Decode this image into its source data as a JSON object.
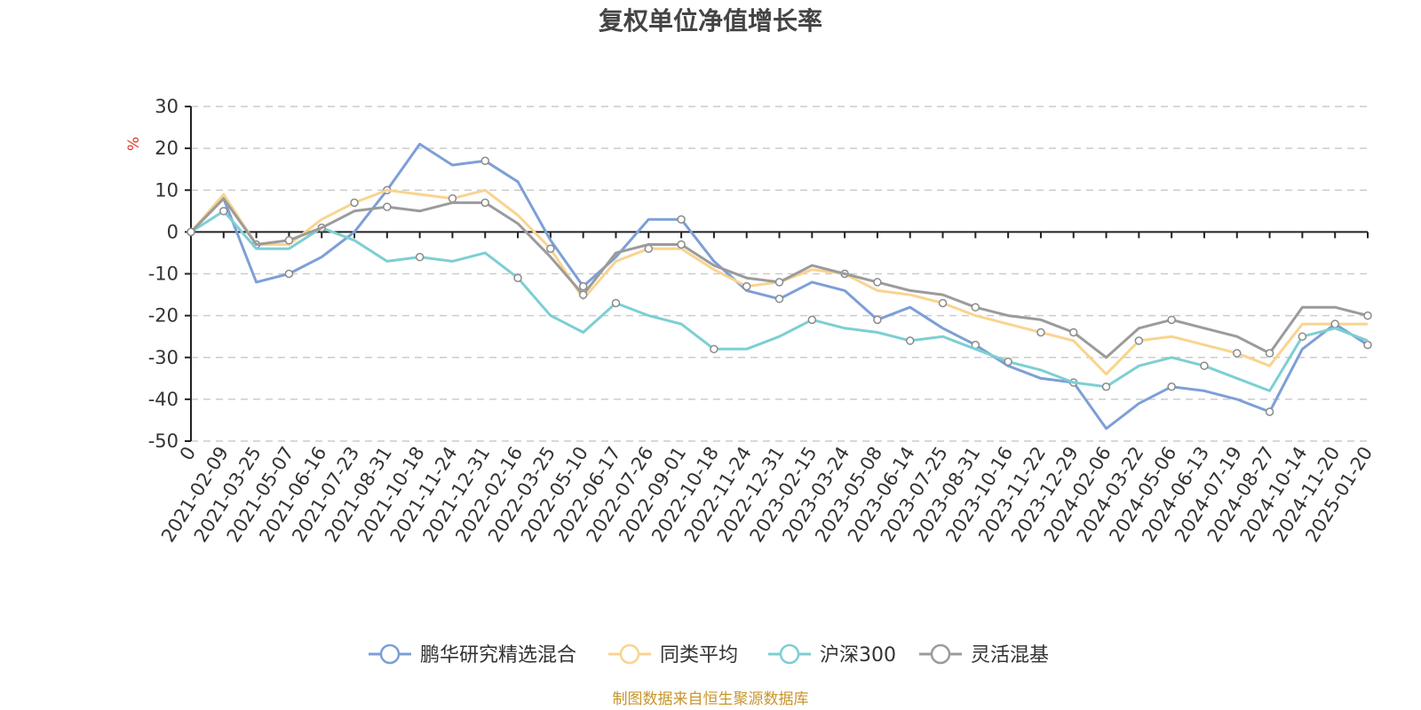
{
  "chart_data": {
    "type": "line",
    "title": "复权单位净值增长率",
    "ylabel": "%",
    "ylim": [
      -50,
      30
    ],
    "yticks": [
      30,
      20,
      10,
      0,
      -10,
      -20,
      -30,
      -40,
      -50
    ],
    "grid": true,
    "legend_position": "bottom",
    "categories": [
      "0",
      "2021-02-09",
      "2021-03-25",
      "2021-05-07",
      "2021-06-16",
      "2021-07-23",
      "2021-08-31",
      "2021-10-18",
      "2021-11-24",
      "2021-12-31",
      "2022-02-16",
      "2022-03-25",
      "2022-05-10",
      "2022-06-17",
      "2022-07-26",
      "2022-09-01",
      "2022-10-18",
      "2022-11-24",
      "2022-12-31",
      "2023-02-15",
      "2023-03-24",
      "2023-05-08",
      "2023-06-14",
      "2023-07-25",
      "2023-08-31",
      "2023-10-16",
      "2023-11-22",
      "2023-12-29",
      "2024-02-06",
      "2024-03-22",
      "2024-05-06",
      "2024-06-13",
      "2024-07-19",
      "2024-08-27",
      "2024-10-14",
      "2024-11-20",
      "2025-01-20"
    ],
    "series": [
      {
        "name": "鹏华研究精选混合",
        "color": "#7d9fd6",
        "values": [
          0,
          8,
          -12,
          -10,
          -6,
          0,
          10,
          21,
          16,
          17,
          12,
          -2,
          -13,
          -6,
          3,
          3,
          -7,
          -14,
          -16,
          -12,
          -14,
          -21,
          -18,
          -23,
          -27,
          -32,
          -35,
          -36,
          -47,
          -41,
          -37,
          -38,
          -40,
          -43,
          -28,
          -22,
          -27
        ]
      },
      {
        "name": "同类平均",
        "color": "#f9d48f",
        "values": [
          0,
          9,
          -3,
          -3,
          3,
          7,
          10,
          9,
          8,
          10,
          4,
          -4,
          -16,
          -7,
          -4,
          -4,
          -9,
          -13,
          -12,
          -9,
          -10,
          -14,
          -15,
          -17,
          -20,
          -22,
          -24,
          -26,
          -34,
          -26,
          -25,
          -27,
          -29,
          -32,
          -22,
          -22,
          -22
        ]
      },
      {
        "name": "沪深300",
        "color": "#7ccfd3",
        "values": [
          0,
          5,
          -4,
          -4,
          1,
          -2,
          -7,
          -6,
          -7,
          -5,
          -11,
          -20,
          -24,
          -17,
          -20,
          -22,
          -28,
          -28,
          -25,
          -21,
          -23,
          -24,
          -26,
          -25,
          -28,
          -31,
          -33,
          -36,
          -37,
          -32,
          -30,
          -32,
          -35,
          -38,
          -25,
          -23,
          -26
        ]
      },
      {
        "name": "灵活混基",
        "color": "#9b9b9b",
        "values": [
          0,
          8,
          -3,
          -2,
          1,
          5,
          6,
          5,
          7,
          7,
          2,
          -6,
          -15,
          -5,
          -3,
          -3,
          -8,
          -11,
          -12,
          -8,
          -10,
          -12,
          -14,
          -15,
          -18,
          -20,
          -21,
          -24,
          -30,
          -23,
          -21,
          -23,
          -25,
          -29,
          -18,
          -18,
          -20
        ]
      }
    ]
  },
  "legend": {
    "items": [
      "鹏华研究精选混合",
      "同类平均",
      "沪深300",
      "灵活混基"
    ]
  },
  "source": "制图数据来自恒生聚源数据库"
}
